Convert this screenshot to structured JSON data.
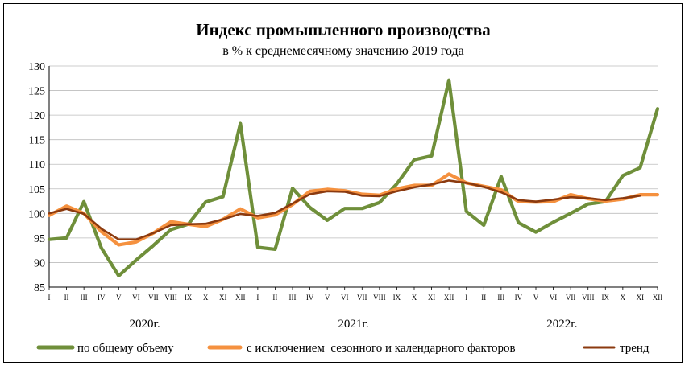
{
  "chart_data": {
    "type": "line",
    "title": "Индекс промышленного производства",
    "subtitle": "в % к среднемесячному значению 2019 года",
    "ylim": [
      85,
      130
    ],
    "yticks": [
      85,
      90,
      95,
      100,
      105,
      110,
      115,
      120,
      125,
      130
    ],
    "categories": [
      "I",
      "II",
      "III",
      "IV",
      "V",
      "VI",
      "VII",
      "VIII",
      "IX",
      "X",
      "XI",
      "XII",
      "I",
      "II",
      "III",
      "IV",
      "V",
      "VI",
      "VII",
      "VIII",
      "IX",
      "X",
      "XI",
      "XII",
      "I",
      "II",
      "III",
      "IV",
      "V",
      "VI",
      "VII",
      "VIII",
      "IX",
      "X",
      "XI",
      "XII"
    ],
    "years": [
      "2020г.",
      "2021г.",
      "2022г."
    ],
    "grid": true,
    "legend_position": "bottom",
    "series": [
      {
        "name": "по общему объему",
        "color": "#6f8f3a",
        "values": [
          94.7,
          95.0,
          102.4,
          93.0,
          87.3,
          90.5,
          93.5,
          96.7,
          97.8,
          102.3,
          103.4,
          118.3,
          93.1,
          92.7,
          105.1,
          101.2,
          98.6,
          101.0,
          101.0,
          102.2,
          106.0,
          110.9,
          111.7,
          127.1,
          100.4,
          97.6,
          107.5,
          98.1,
          96.2,
          98.2,
          100.0,
          101.9,
          102.4,
          107.7,
          109.3,
          121.3
        ]
      },
      {
        "name": "с исключением  сезонного и календарного факторов",
        "color": "#f5913f",
        "values": [
          99.6,
          101.5,
          100.0,
          96.3,
          93.6,
          94.2,
          96.0,
          98.3,
          97.8,
          97.3,
          98.8,
          100.9,
          99.1,
          99.7,
          101.8,
          104.5,
          104.9,
          104.6,
          103.9,
          103.7,
          105.0,
          105.7,
          105.7,
          108.0,
          106.2,
          105.5,
          104.8,
          102.4,
          102.3,
          102.4,
          103.8,
          103.0,
          102.5,
          102.9,
          103.8,
          103.8
        ]
      },
      {
        "name": "тренд",
        "color": "#8b3a0f",
        "values": [
          100.0,
          100.9,
          99.9,
          96.9,
          94.7,
          94.7,
          96.0,
          97.6,
          97.8,
          97.9,
          98.8,
          99.9,
          99.5,
          100.1,
          102.0,
          103.9,
          104.5,
          104.4,
          103.6,
          103.5,
          104.5,
          105.3,
          105.9,
          106.7,
          106.2,
          105.4,
          104.3,
          102.7,
          102.4,
          102.8,
          103.3,
          103.1,
          102.7,
          103.1,
          103.6,
          null
        ]
      }
    ]
  }
}
